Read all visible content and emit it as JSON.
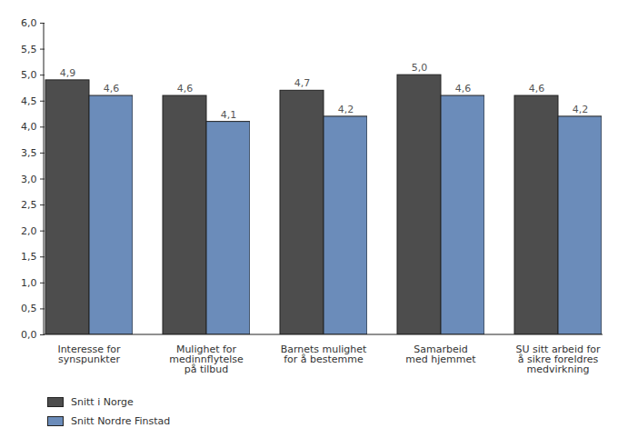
{
  "chart_data": {
    "type": "bar",
    "categories": [
      "Interesse for\nsynspunkter",
      "Mulighet for\nmedinnflytelse\npå tilbud",
      "Barnets mulighet\nfor å bestemme",
      "Samarbeid\nmed hjemmet",
      "SU sitt arbeid for\nå sikre foreldres\nmedvirkning"
    ],
    "series": [
      {
        "name": "Snitt i Norge",
        "color": "#4d4d4d",
        "values": [
          4.9,
          4.6,
          4.7,
          5.0,
          4.6
        ],
        "value_labels": [
          "4,9",
          "4,6",
          "4,7",
          "5,0",
          "4,6"
        ]
      },
      {
        "name": "Snitt Nordre Finstad",
        "color": "#6b8cba",
        "values": [
          4.6,
          4.1,
          4.2,
          4.6,
          4.2
        ],
        "value_labels": [
          "4,6",
          "4,1",
          "4,2",
          "4,6",
          "4,2"
        ]
      }
    ],
    "ylim": [
      0,
      6
    ],
    "yticks": [
      {
        "value": 0,
        "label": "0,0"
      },
      {
        "value": 0.5,
        "label": "0,5"
      },
      {
        "value": 1,
        "label": "1,0"
      },
      {
        "value": 1.5,
        "label": "1,5"
      },
      {
        "value": 2,
        "label": "2,0"
      },
      {
        "value": 2.5,
        "label": "2,5"
      },
      {
        "value": 3,
        "label": "3,0"
      },
      {
        "value": 3.5,
        "label": "3,5"
      },
      {
        "value": 4,
        "label": "4,0"
      },
      {
        "value": 4.5,
        "label": "4,5"
      },
      {
        "value": 5,
        "label": "5,0"
      },
      {
        "value": 5.5,
        "label": "5,5"
      },
      {
        "value": 6,
        "label": "6,0"
      }
    ],
    "grid": false,
    "legend": "bottom-left",
    "data_labels": true
  }
}
